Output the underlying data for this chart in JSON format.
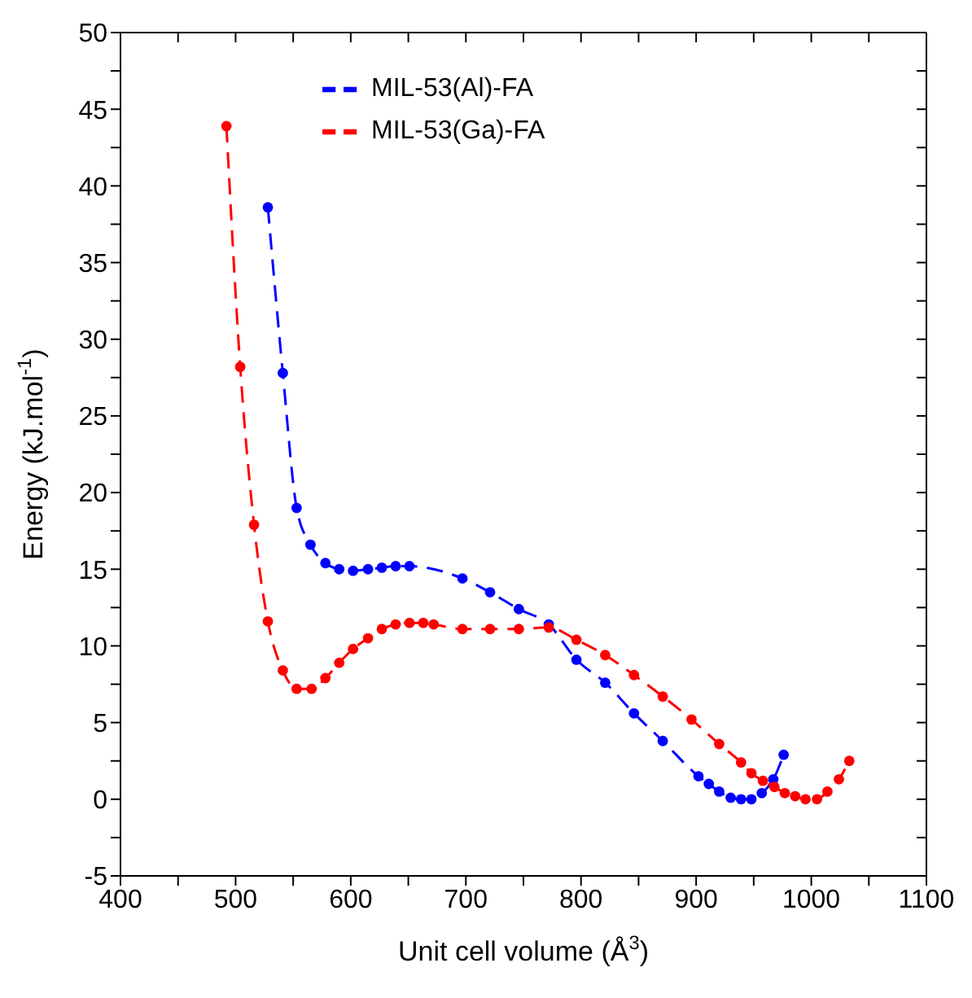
{
  "chart_data": {
    "type": "line",
    "xlabel": "Unit cell volume (Å$^{3}$)",
    "ylabel": "Energy (kJ.mol$^{-1}$)",
    "xlim": [
      400,
      1100
    ],
    "xticks": [
      400,
      {
        "value": 450,
        "label": null
      },
      500,
      {
        "value": 550,
        "label": null
      },
      600,
      {
        "value": 650,
        "label": null
      },
      700,
      {
        "value": 750,
        "label": null
      },
      800,
      {
        "value": 850,
        "label": null
      },
      900,
      {
        "value": 950,
        "label": null
      },
      1000,
      {
        "value": 1050,
        "label": null
      },
      1100
    ],
    "ylim": [
      -5,
      50
    ],
    "yticks": [
      -5,
      {
        "value": -2.5,
        "label": null
      },
      0,
      {
        "value": 2.5,
        "label": null
      },
      5,
      {
        "value": 7.5,
        "label": null
      },
      10,
      {
        "value": 12.5,
        "label": null
      },
      15,
      {
        "value": 17.5,
        "label": null
      },
      20,
      {
        "value": 22.5,
        "label": null
      },
      25,
      {
        "value": 27.5,
        "label": null
      },
      30,
      {
        "value": 32.5,
        "label": null
      },
      35,
      {
        "value": 37.5,
        "label": null
      },
      40,
      {
        "value": 42.5,
        "label": null
      },
      45,
      {
        "value": 47.5,
        "label": null
      },
      50
    ],
    "legend": "top",
    "marker": "circle",
    "line_style": "dashed",
    "series": [
      {
        "name": "MIL-53(Al)-FA",
        "color": "#0000ff",
        "x": [
          528,
          541,
          553,
          565,
          578,
          590,
          602,
          615,
          627,
          639,
          651,
          697,
          721,
          746,
          772,
          796,
          821,
          846,
          871,
          902,
          911,
          920,
          930,
          939,
          948,
          957,
          967,
          976
        ],
        "values": [
          38.6,
          27.8,
          19.0,
          16.6,
          15.4,
          15.0,
          14.9,
          15.0,
          15.1,
          15.2,
          15.2,
          14.4,
          13.5,
          12.4,
          11.4,
          9.1,
          7.6,
          5.6,
          3.8,
          1.5,
          1.0,
          0.5,
          0.1,
          0,
          0,
          0.4,
          1.3,
          2.9
        ]
      },
      {
        "name": "MIL-53(Ga)-FA",
        "color": "#ff0000",
        "x": [
          492,
          504,
          516,
          528,
          541,
          553,
          566,
          578,
          590,
          602,
          615,
          627,
          639,
          651,
          663,
          672,
          697,
          721,
          746,
          772,
          796,
          821,
          846,
          871,
          896,
          920,
          939,
          948,
          958,
          968,
          977,
          986,
          995,
          1005,
          1014,
          1024,
          1033
        ],
        "values": [
          43.9,
          28.2,
          17.9,
          11.6,
          8.4,
          7.2,
          7.2,
          7.9,
          8.9,
          9.8,
          10.5,
          11.1,
          11.4,
          11.5,
          11.5,
          11.4,
          11.1,
          11.1,
          11.1,
          11.2,
          10.4,
          9.4,
          8.1,
          6.7,
          5.2,
          3.6,
          2.4,
          1.7,
          1.2,
          0.8,
          0.4,
          0.2,
          0,
          0,
          0.5,
          1.3,
          2.5
        ]
      }
    ]
  }
}
